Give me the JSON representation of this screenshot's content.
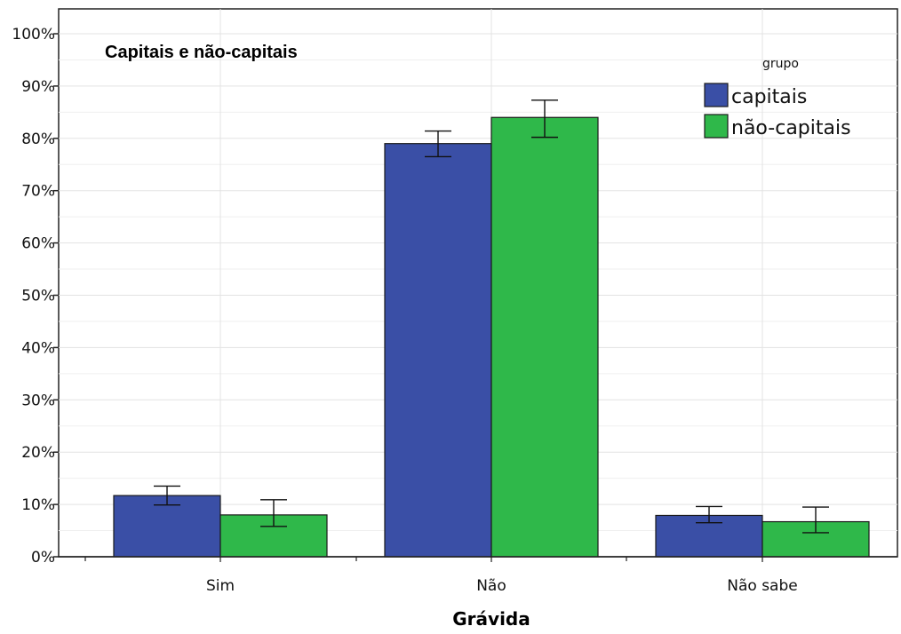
{
  "chart_data": {
    "type": "bar",
    "title": "Capitais e não-capitais",
    "xlabel": "Grávida",
    "ylabel": "",
    "ylim": [
      0,
      100
    ],
    "yticks": [
      "0%",
      "10%",
      "20%",
      "30%",
      "40%",
      "50%",
      "60%",
      "70%",
      "80%",
      "90%",
      "100%"
    ],
    "categories": [
      "Sim",
      "Não",
      "Não sabe"
    ],
    "legend_title": "grupo",
    "legend_position": "top-right",
    "grid": true,
    "series": [
      {
        "name": "capitais",
        "color": "#3a4fa6",
        "values": [
          11.7,
          79.0,
          7.9
        ],
        "error_low": [
          9.9,
          76.5,
          6.5
        ],
        "error_high": [
          13.5,
          81.4,
          9.6
        ]
      },
      {
        "name": "não-capitais",
        "color": "#2fb84a",
        "values": [
          8.0,
          84.0,
          6.7
        ],
        "error_low": [
          5.8,
          80.2,
          4.6
        ],
        "error_high": [
          10.9,
          87.3,
          9.5
        ]
      }
    ]
  }
}
